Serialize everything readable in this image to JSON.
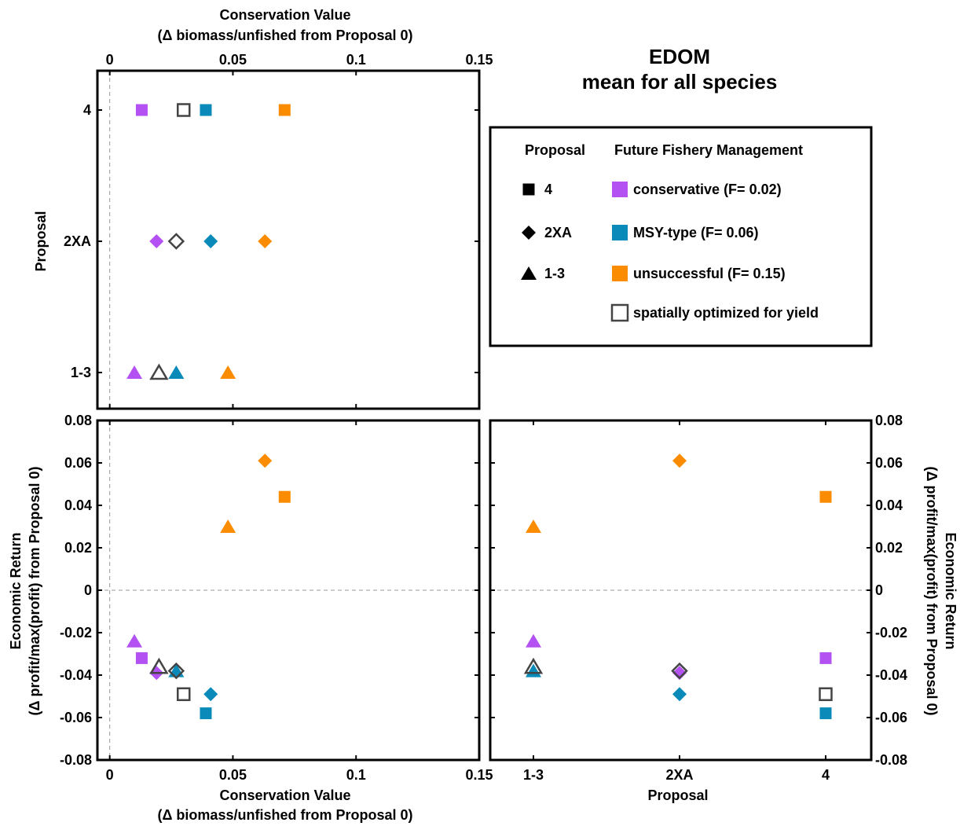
{
  "title": {
    "line1": "EDOM",
    "line2": "mean for all species"
  },
  "colors": {
    "conservative": "#b351f2",
    "msy": "#0a8ab8",
    "unsuccessful": "#fb8c00",
    "optimized_stroke": "#444444",
    "legend_marker": "#000000"
  },
  "legend": {
    "proposal_header": "Proposal",
    "management_header": "Future Fishery Management",
    "proposals": [
      {
        "label": "4",
        "shape": "square-icon"
      },
      {
        "label": "2XA",
        "shape": "diamond-icon"
      },
      {
        "label": "1-3",
        "shape": "triangle-icon"
      }
    ],
    "managements": [
      {
        "key": "conservative",
        "label": "conservative (F= 0.02)"
      },
      {
        "key": "msy",
        "label": "MSY-type (F= 0.06)"
      },
      {
        "key": "unsuccessful",
        "label": "unsuccessful (F= 0.15)"
      },
      {
        "key": "optimized",
        "label": "spatially optimized for yield"
      }
    ]
  },
  "chart_data": [
    {
      "type": "scatter",
      "panel": "top-left",
      "xlabel_line1": "Conservation Value",
      "xlabel_line2": "(Δ biomass/unfished from Proposal 0)",
      "ylabel": "Proposal",
      "xlim": [
        -0.005,
        0.15
      ],
      "xticks": [
        "0",
        "0.05",
        "0.1",
        "0.15"
      ],
      "yticks": [
        "1-3",
        "2XA",
        "4"
      ],
      "x_axis_position": "top",
      "points": [
        {
          "proposal": "4",
          "management": "conservative",
          "x": 0.013
        },
        {
          "proposal": "4",
          "management": "optimized",
          "x": 0.03
        },
        {
          "proposal": "4",
          "management": "msy",
          "x": 0.039
        },
        {
          "proposal": "4",
          "management": "unsuccessful",
          "x": 0.071
        },
        {
          "proposal": "2XA",
          "management": "conservative",
          "x": 0.019
        },
        {
          "proposal": "2XA",
          "management": "optimized",
          "x": 0.027
        },
        {
          "proposal": "2XA",
          "management": "msy",
          "x": 0.041
        },
        {
          "proposal": "2XA",
          "management": "unsuccessful",
          "x": 0.063
        },
        {
          "proposal": "1-3",
          "management": "conservative",
          "x": 0.01
        },
        {
          "proposal": "1-3",
          "management": "optimized",
          "x": 0.02
        },
        {
          "proposal": "1-3",
          "management": "msy",
          "x": 0.027
        },
        {
          "proposal": "1-3",
          "management": "unsuccessful",
          "x": 0.048
        }
      ]
    },
    {
      "type": "scatter",
      "panel": "bottom-left",
      "xlabel_line1": "Conservation Value",
      "xlabel_line2": "(Δ biomass/unfished from Proposal 0)",
      "ylabel_line1": "Economic Return",
      "ylabel_line2": "(Δ profit/max(profit) from Proposal 0)",
      "xlim": [
        -0.005,
        0.15
      ],
      "ylim": [
        -0.08,
        0.08
      ],
      "xticks": [
        "0",
        "0.05",
        "0.1",
        "0.15"
      ],
      "yticks": [
        "-0.08",
        "-0.06",
        "-0.04",
        "-0.02",
        "0",
        "0.02",
        "0.04",
        "0.06",
        "0.08"
      ],
      "points": [
        {
          "proposal": "4",
          "management": "conservative",
          "x": 0.013,
          "y": -0.032
        },
        {
          "proposal": "4",
          "management": "optimized",
          "x": 0.03,
          "y": -0.049
        },
        {
          "proposal": "4",
          "management": "msy",
          "x": 0.039,
          "y": -0.058
        },
        {
          "proposal": "4",
          "management": "unsuccessful",
          "x": 0.071,
          "y": 0.044
        },
        {
          "proposal": "2XA",
          "management": "conservative",
          "x": 0.019,
          "y": -0.039
        },
        {
          "proposal": "2XA",
          "management": "msy",
          "x": 0.041,
          "y": -0.049
        },
        {
          "proposal": "2XA",
          "management": "unsuccessful",
          "x": 0.063,
          "y": 0.061
        },
        {
          "proposal": "1-3",
          "management": "conservative",
          "x": 0.01,
          "y": -0.024
        },
        {
          "proposal": "1-3",
          "management": "msy",
          "x": 0.027,
          "y": -0.038
        },
        {
          "proposal": "1-3",
          "management": "unsuccessful",
          "x": 0.048,
          "y": 0.03
        },
        {
          "proposal": "1-3",
          "management": "optimized",
          "x": 0.02,
          "y": -0.036
        },
        {
          "proposal": "2XA",
          "management": "optimized",
          "x": 0.027,
          "y": -0.038
        }
      ]
    },
    {
      "type": "scatter",
      "panel": "bottom-right",
      "xlabel": "Proposal",
      "ylabel_line1": "Economic Return",
      "ylabel_line2": "(Δ profit/max(profit) from Proposal 0)",
      "ylim": [
        -0.08,
        0.08
      ],
      "xticks": [
        "1-3",
        "2XA",
        "4"
      ],
      "yticks": [
        "-0.08",
        "-0.06",
        "-0.04",
        "-0.02",
        "0",
        "0.02",
        "0.04",
        "0.06",
        "0.08"
      ],
      "y_axis_position": "right",
      "points": [
        {
          "proposal": "1-3",
          "management": "unsuccessful",
          "y": 0.03
        },
        {
          "proposal": "1-3",
          "management": "conservative",
          "y": -0.024
        },
        {
          "proposal": "1-3",
          "management": "msy",
          "y": -0.038
        },
        {
          "proposal": "1-3",
          "management": "optimized",
          "y": -0.036
        },
        {
          "proposal": "2XA",
          "management": "unsuccessful",
          "y": 0.061
        },
        {
          "proposal": "2XA",
          "management": "conservative",
          "y": -0.039
        },
        {
          "proposal": "2XA",
          "management": "optimized",
          "y": -0.038
        },
        {
          "proposal": "2XA",
          "management": "msy",
          "y": -0.049
        },
        {
          "proposal": "4",
          "management": "unsuccessful",
          "y": 0.044
        },
        {
          "proposal": "4",
          "management": "conservative",
          "y": -0.032
        },
        {
          "proposal": "4",
          "management": "optimized",
          "y": -0.049
        },
        {
          "proposal": "4",
          "management": "msy",
          "y": -0.058
        }
      ]
    }
  ]
}
